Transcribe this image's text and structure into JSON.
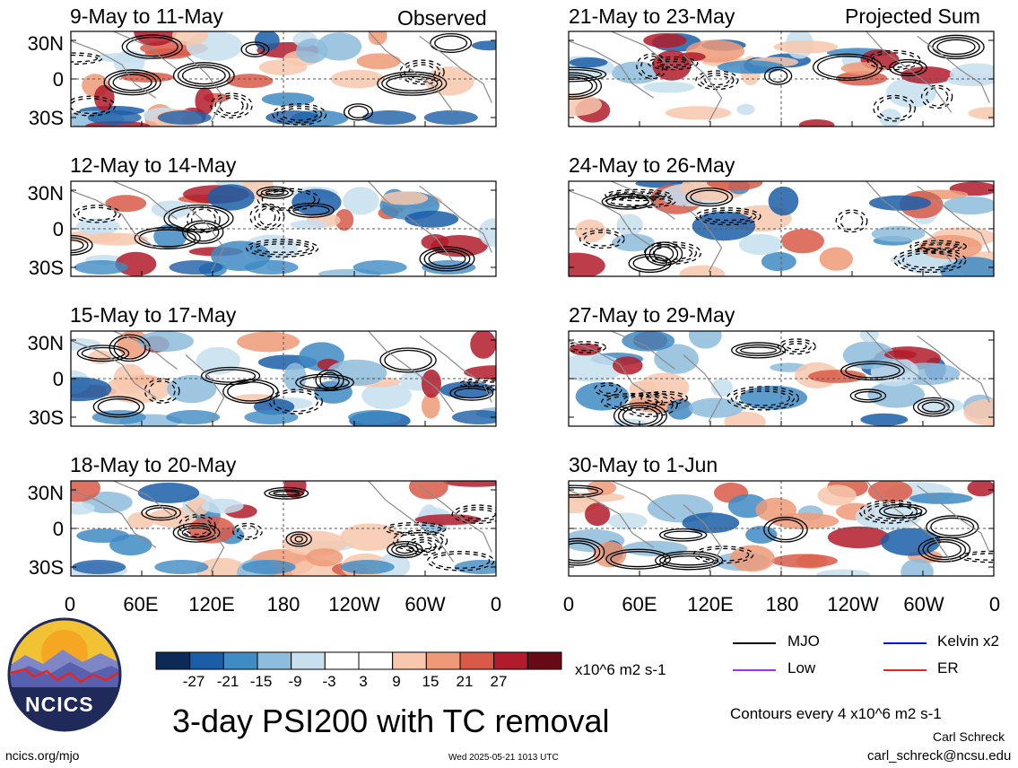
{
  "left_panels": [
    {
      "period": "9-May to 11-May",
      "label": "Observed"
    },
    {
      "period": "12-May to 14-May"
    },
    {
      "period": "15-May to 17-May"
    },
    {
      "period": "18-May to 20-May"
    }
  ],
  "right_panels": [
    {
      "period": "21-May to 23-May",
      "label": "Projected Sum"
    },
    {
      "period": "24-May to 26-May"
    },
    {
      "period": "27-May to 29-May"
    },
    {
      "period": "30-May to 1-Jun"
    }
  ],
  "lat_ticks": [
    "30N",
    "0",
    "30S"
  ],
  "lon_ticks": [
    "0",
    "60E",
    "120E",
    "180",
    "120W",
    "60W",
    "0"
  ],
  "colorbar": {
    "colors": [
      "#0b2a55",
      "#1b5ea7",
      "#3f8bc4",
      "#8dbcdc",
      "#c7dfee",
      "#ffffff",
      "#ffffff",
      "#f7c8ad",
      "#ee9a78",
      "#d95a48",
      "#b11c2a",
      "#670a16"
    ],
    "labels": [
      "-27",
      "-21",
      "-15",
      "-9",
      "-3",
      "3",
      "9",
      "15",
      "21",
      "27"
    ],
    "units": "x10^6 m2 s-1"
  },
  "legend": [
    {
      "name": "MJO",
      "color": "#000000"
    },
    {
      "name": "Kelvin x2",
      "color": "#0000ff"
    },
    {
      "name": "Low",
      "color": "#9b30ff"
    },
    {
      "name": "ER",
      "color": "#e8251c"
    }
  ],
  "contour_note": "Contours every 4 x10^6 m2 s-1",
  "title": "3-day PSI200 with TC removal",
  "logo_text": "NCICS",
  "footer": {
    "site": "ncics.org/mjo",
    "timestamp": "Wed 2025-05-21 1013 UTC",
    "author": "Carl Schreck",
    "email": "carl_schreck@ncsu.edu"
  }
}
